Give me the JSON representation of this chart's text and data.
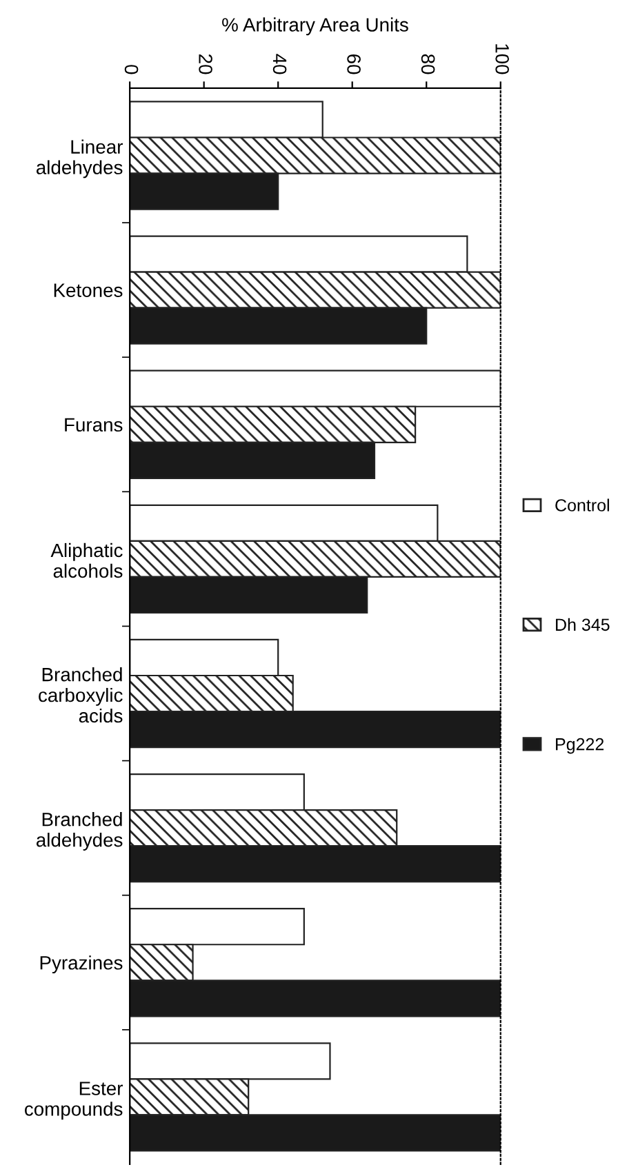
{
  "chart_data": {
    "type": "bar",
    "orientation": "horizontal",
    "xlabel": "% Arbitrary Area Units",
    "categories": [
      "Linear\naldehydes",
      "Ketones",
      "Furans",
      "Aliphatic\nalcohols",
      "Branched\ncarboxylic\nacids",
      "Branched\naldehydes",
      "Pyrazines",
      "Ester\ncompounds"
    ],
    "series": [
      {
        "name": "Control",
        "color": "#ffffff",
        "values": [
          52,
          91,
          100,
          83,
          40,
          47,
          47,
          54
        ]
      },
      {
        "name": "Dh 345",
        "color": "#222222",
        "values": [
          100,
          100,
          77,
          100,
          44,
          72,
          17,
          32
        ]
      },
      {
        "name": "Pg222",
        "color": "#1a1a1a",
        "values": [
          40,
          80,
          66,
          64,
          100,
          100,
          100,
          100
        ]
      }
    ],
    "xlim": [
      0,
      100
    ],
    "xticks": [
      0,
      20,
      40,
      60,
      80,
      100
    ],
    "legend": "right",
    "grid": false
  }
}
